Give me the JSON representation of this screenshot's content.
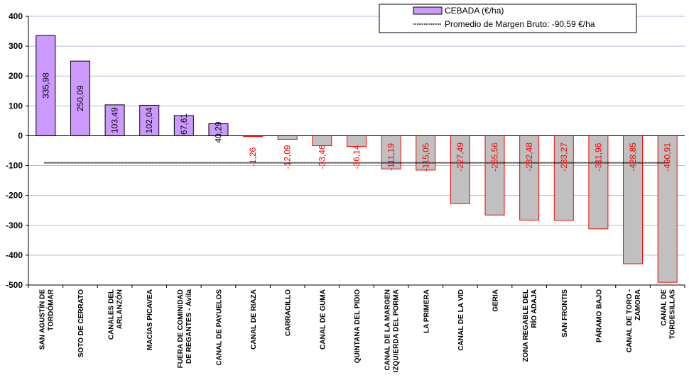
{
  "chart_data": {
    "type": "bar",
    "title": "",
    "xlabel": "",
    "ylabel": "",
    "ylim": [
      -500,
      400
    ],
    "yticks": [
      400,
      300,
      200,
      100,
      0,
      -100,
      -200,
      -300,
      -400,
      -500
    ],
    "grid": true,
    "legend_position": "top-right",
    "series": [
      {
        "name": "CEBADA (€/ha)",
        "values": [
          335.98,
          250.09,
          103.49,
          102.04,
          67.61,
          40.29,
          -1.26,
          -12.09,
          -33.46,
          -36.14,
          -111.19,
          -115.05,
          -227.49,
          -265.56,
          -282.48,
          -283.27,
          -311.96,
          -428.85,
          -490.91
        ]
      }
    ],
    "reference_line": {
      "name": "Promedio de Margen Bruto: -90,59 €/ha",
      "value": -90.59
    },
    "categories": [
      [
        "SAN AGUSTÍN DE",
        "TORDÓMAR"
      ],
      [
        "SOTO DE CERRATO"
      ],
      [
        "CANALES DEL",
        "ARLANZÓN"
      ],
      [
        "MACÍAS PICAVEA"
      ],
      [
        "FUERA DE COMINIDAD",
        "DE REGANTES - Ávila"
      ],
      [
        "CANAL DE PAYUELOS"
      ],
      [
        "CANAL DE RIAZA"
      ],
      [
        "CARRACILLO"
      ],
      [
        "CANAL DE GUMA"
      ],
      [
        "QUINTANA DEL PIDIO"
      ],
      [
        "CANAL DE LA MARGEN",
        "IZQUIERDA DEL PORMA"
      ],
      [
        "LA PRIMERA"
      ],
      [
        "CANAL DE LA VID"
      ],
      [
        "GERIA"
      ],
      [
        "ZONA REGABLE DEL",
        "RÍO ADAJA"
      ],
      [
        "SAN FRONTIS"
      ],
      [
        "PÁRAMO BAJO"
      ],
      [
        "CANAL DE TORO -",
        "ZAMORA"
      ],
      [
        "CANAL DE",
        "TORDESILLAS"
      ]
    ],
    "value_labels": [
      "335,98",
      "250,09",
      "103,49",
      "102,04",
      "67,61",
      "40,29",
      "-1,26",
      "-12,09",
      "-33,46",
      "-36,14",
      "-111,19",
      "-115,05",
      "-227,49",
      "-265,56",
      "-282,48",
      "-283,27",
      "-311,96",
      "-428,85",
      "-490,91"
    ],
    "colors": {
      "positive_fill": "#cc99ff",
      "negative_fill": "#c0c0c0",
      "positive_stroke": "#000000",
      "negative_stroke": "#ff0000",
      "positive_label": "#000000",
      "negative_label": "#ff0000",
      "gridline": "#b8b8d8",
      "reference_line": "#000000"
    }
  }
}
